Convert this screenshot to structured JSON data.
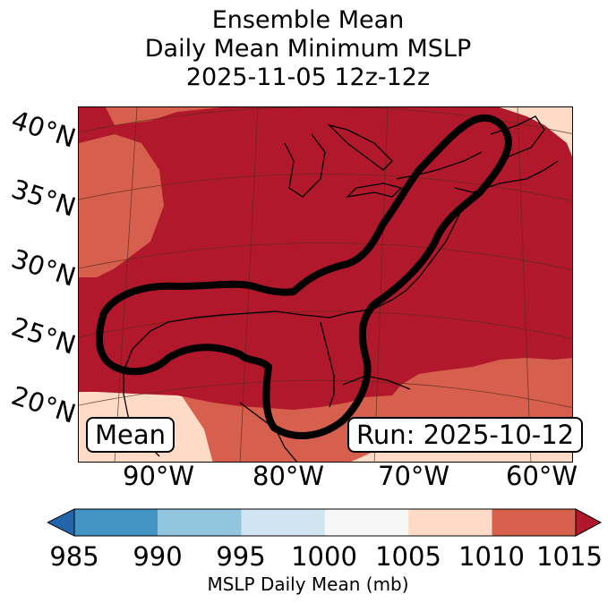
{
  "title": {
    "line1": "Ensemble Mean",
    "line2": "Daily Mean Minimum MSLP",
    "line3": "2025-11-05 12z-12z"
  },
  "map": {
    "lat_labels": [
      "40°N",
      "35°N",
      "30°N",
      "25°N",
      "20°N"
    ],
    "lon_labels": [
      "90°W",
      "80°W",
      "70°W",
      "60°W"
    ],
    "mean_label": "Mean",
    "run_label": "Run: 2025-10-12",
    "field_colors": {
      "below_1010": "#fddbc7",
      "1010_1015": "#d6604d",
      "above_1015": "#b2182b"
    },
    "contour_color": "#000000",
    "coastline_color": "#000000"
  },
  "colorbar": {
    "label": "MSLP Daily Mean (mb)",
    "ticks": [
      "985",
      "990",
      "995",
      "1000",
      "1005",
      "1010",
      "1015"
    ],
    "under_color": "#2166ac",
    "over_color": "#b2182b",
    "bins": [
      {
        "range": "985-990",
        "color": "#4393c3"
      },
      {
        "range": "990-995",
        "color": "#92c5de"
      },
      {
        "range": "995-1000",
        "color": "#d1e5f0"
      },
      {
        "range": "1000-1005",
        "color": "#f7f7f7"
      },
      {
        "range": "1005-1010",
        "color": "#fddbc7"
      },
      {
        "range": "1010-1015",
        "color": "#d6604d"
      }
    ]
  }
}
